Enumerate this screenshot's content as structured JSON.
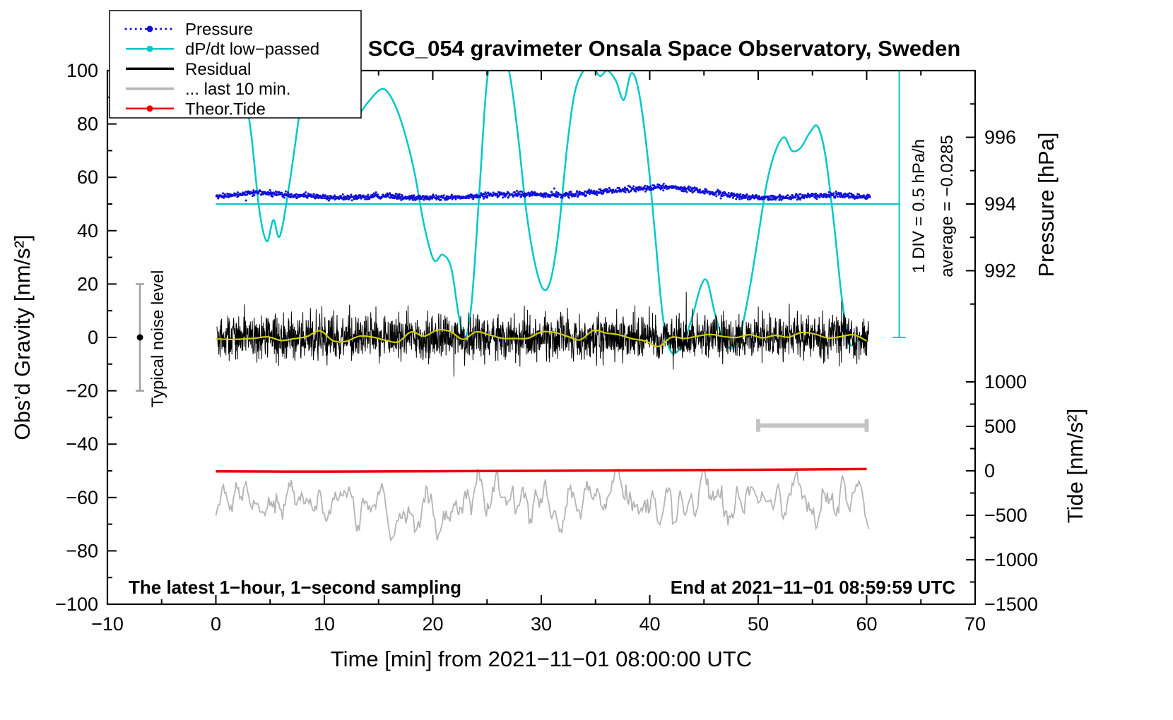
{
  "chart_data": {
    "type": "line",
    "title": "SCG_054 gravimeter Onsala Space Observatory, Sweden",
    "axes": {
      "x": {
        "label": "Time [min] from 2021−11−01 08:00:00 UTC",
        "min": -10,
        "max": 70,
        "major_ticks": [
          -10,
          0,
          10,
          20,
          30,
          40,
          50,
          60,
          70
        ],
        "minor_step": 5
      },
      "gravity": {
        "label": "Obs’d Gravity [nm/s²]",
        "min": -100,
        "max": 100,
        "major_ticks": [
          -100,
          -80,
          -60,
          -40,
          -20,
          0,
          20,
          40,
          60,
          80,
          100
        ],
        "minor_step": 10
      },
      "pressure": {
        "label": "Pressure [hPa]",
        "ticks": [
          996,
          994,
          992
        ],
        "minor_ticks": [
          997,
          995,
          993,
          991
        ],
        "ref": {
          "hpa": 994,
          "gravity": 50
        },
        "gravity_per_hpa": 12.5
      },
      "tide": {
        "label": "Tide [nm/s²]",
        "ticks": [
          1000,
          500,
          0,
          -500,
          -1000,
          -1500
        ],
        "minor_ticks": [
          750,
          250,
          -250,
          -750,
          -1250
        ],
        "gravity_at_zero": -50,
        "tide_units_per_gravity": 30
      }
    },
    "legend": [
      {
        "label": "Pressure",
        "color": "#1010d8",
        "style": "dots"
      },
      {
        "label": "dP/dt low−passed",
        "color": "#00c8c8",
        "style": "line-dot"
      },
      {
        "label": "Residual",
        "color": "#000000",
        "style": "line"
      },
      {
        "label": "... last 10 min.",
        "color": "#b4b4b4",
        "style": "line"
      },
      {
        "label": "Theor.Tide",
        "color": "#eb0000",
        "style": "line-dot"
      }
    ],
    "series": {
      "pressure_dots": {
        "name": "Pressure",
        "color": "#1010d8",
        "noise_sd": 0.5,
        "n_points": 1500,
        "anchors": [
          [
            0,
            52.6
          ],
          [
            2,
            53.6
          ],
          [
            3.5,
            54.3
          ],
          [
            5,
            54.1
          ],
          [
            7,
            53.3
          ],
          [
            9,
            52.9
          ],
          [
            11,
            52.3
          ],
          [
            13,
            52.7
          ],
          [
            15,
            53.0
          ],
          [
            17,
            52.6
          ],
          [
            19,
            52.3
          ],
          [
            21,
            52.4
          ],
          [
            23,
            52.6
          ],
          [
            25,
            53.3
          ],
          [
            27,
            53.7
          ],
          [
            29,
            53.6
          ],
          [
            31,
            53.4
          ],
          [
            33,
            53.7
          ],
          [
            35,
            54.4
          ],
          [
            37,
            55.1
          ],
          [
            39,
            55.7
          ],
          [
            41,
            56.4
          ],
          [
            42,
            56.4
          ],
          [
            44,
            55.3
          ],
          [
            46,
            54.1
          ],
          [
            48,
            52.9
          ],
          [
            50,
            52.4
          ],
          [
            52,
            52.4
          ],
          [
            54,
            52.8
          ],
          [
            56,
            53.2
          ],
          [
            57.5,
            53.4
          ],
          [
            59,
            52.9
          ],
          [
            60.3,
            52.6
          ]
        ]
      },
      "dpdt": {
        "name": "dP/dt low−passed",
        "color": "#00c8c8",
        "width": 2.5,
        "points": [
          [
            1.2,
            106
          ],
          [
            2.2,
            103
          ],
          [
            3.2,
            78
          ],
          [
            4.0,
            48
          ],
          [
            4.7,
            36
          ],
          [
            5.3,
            44
          ],
          [
            5.9,
            38
          ],
          [
            6.8,
            58
          ],
          [
            7.8,
            86
          ],
          [
            8.6,
            101
          ],
          [
            9.3,
            106
          ],
          [
            10.4,
            103
          ],
          [
            11.3,
            88
          ],
          [
            12.2,
            85
          ],
          [
            13.0,
            83
          ],
          [
            14.0,
            88
          ],
          [
            15.2,
            93
          ],
          [
            16.0,
            91
          ],
          [
            17.0,
            82
          ],
          [
            18.2,
            64
          ],
          [
            19.2,
            42
          ],
          [
            20.1,
            29
          ],
          [
            20.9,
            31
          ],
          [
            21.7,
            26
          ],
          [
            22.4,
            8
          ],
          [
            23.0,
            0
          ],
          [
            23.6,
            14
          ],
          [
            24.3,
            55
          ],
          [
            24.9,
            92
          ],
          [
            25.4,
            104
          ],
          [
            26.5,
            107
          ],
          [
            27.2,
            96
          ],
          [
            27.9,
            74
          ],
          [
            28.6,
            48
          ],
          [
            29.4,
            28
          ],
          [
            30.2,
            18
          ],
          [
            30.9,
            22
          ],
          [
            31.6,
            40
          ],
          [
            32.4,
            72
          ],
          [
            33.1,
            92
          ],
          [
            33.9,
            100
          ],
          [
            34.6,
            102
          ],
          [
            35.4,
            98
          ],
          [
            36.1,
            100
          ],
          [
            36.9,
            96
          ],
          [
            37.6,
            89
          ],
          [
            38.3,
            99
          ],
          [
            39.0,
            92
          ],
          [
            39.8,
            68
          ],
          [
            40.5,
            38
          ],
          [
            41.2,
            8
          ],
          [
            41.9,
            -5
          ],
          [
            42.8,
            -4
          ],
          [
            43.8,
            6
          ],
          [
            44.7,
            19
          ],
          [
            45.3,
            21
          ],
          [
            46.0,
            9
          ],
          [
            46.8,
            -1
          ],
          [
            47.6,
            -4
          ],
          [
            48.4,
            2
          ],
          [
            49.2,
            18
          ],
          [
            50.0,
            38
          ],
          [
            50.8,
            58
          ],
          [
            51.6,
            70
          ],
          [
            52.4,
            75
          ],
          [
            53.1,
            70
          ],
          [
            53.9,
            71
          ],
          [
            54.8,
            77
          ],
          [
            55.5,
            79
          ],
          [
            56.2,
            68
          ],
          [
            57.0,
            42
          ],
          [
            57.7,
            15
          ],
          [
            58.4,
            -2
          ],
          [
            59.2,
            -1
          ],
          [
            59.8,
            2
          ]
        ]
      },
      "residual": {
        "name": "Residual",
        "color": "#000000",
        "center": 0,
        "sd": 4.1,
        "n_points": 2400,
        "x_range": [
          0.1,
          60.2
        ]
      },
      "residual_smooth": {
        "color": "#cdcd00",
        "amplitude": 1.2,
        "width": 2.2
      },
      "last10": {
        "name": "... last 10 min.",
        "color": "#b4b4b4",
        "center": -62,
        "sd": 4.5,
        "n_points": 520,
        "x_range": [
          0,
          60.2
        ]
      },
      "tide": {
        "name": "Theor.Tide",
        "color": "#eb0000",
        "width": 3.5,
        "points": [
          [
            0,
            -50.2
          ],
          [
            10,
            -50.3
          ],
          [
            20,
            -50.15
          ],
          [
            30,
            -50.0
          ],
          [
            40,
            -49.8
          ],
          [
            50,
            -49.6
          ],
          [
            60,
            -49.3
          ]
        ]
      }
    },
    "annotations": {
      "pressure_ref_line": {
        "gravity": 50,
        "x_from": 0,
        "x_to": 63
      },
      "div_marker": {
        "x": 63,
        "g_from": 0,
        "g_to": 100,
        "text": "1 DIV = 0.5 hPa/h"
      },
      "average_text": "average = −0.0285",
      "noise_bar": {
        "x": -7,
        "center": 0,
        "half_range": 20,
        "text": "Typical noise level"
      },
      "scale_bar": {
        "x_from": 50,
        "x_to": 60,
        "gravity": -33
      }
    },
    "footer": {
      "left": "The latest 1−hour, 1−second sampling",
      "right": "End at 2021−11−01 08:59:59 UTC"
    }
  }
}
